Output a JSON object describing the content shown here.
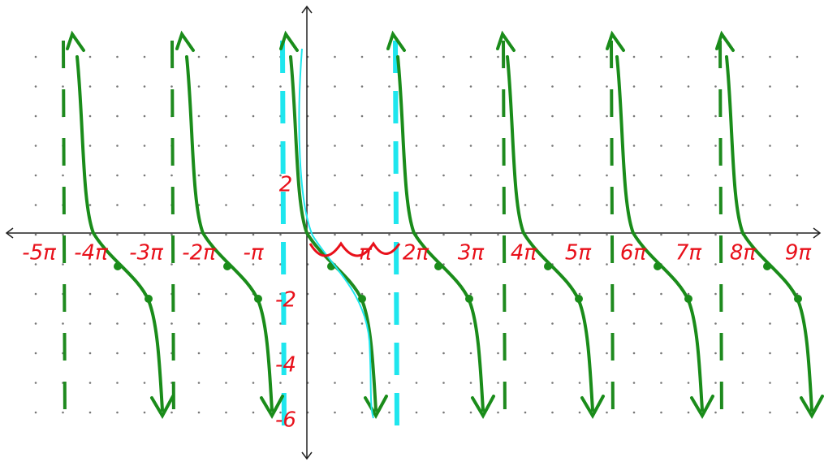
{
  "x_axis_labels": [
    "-5π",
    "-4π",
    "-3π",
    "-2π",
    "-π",
    "π",
    "2π",
    "3π",
    "4π",
    "5π",
    "6π",
    "7π",
    "8π",
    "9π"
  ],
  "y_axis_labels": [
    "2",
    "-2",
    "-4",
    "-6"
  ]
}
